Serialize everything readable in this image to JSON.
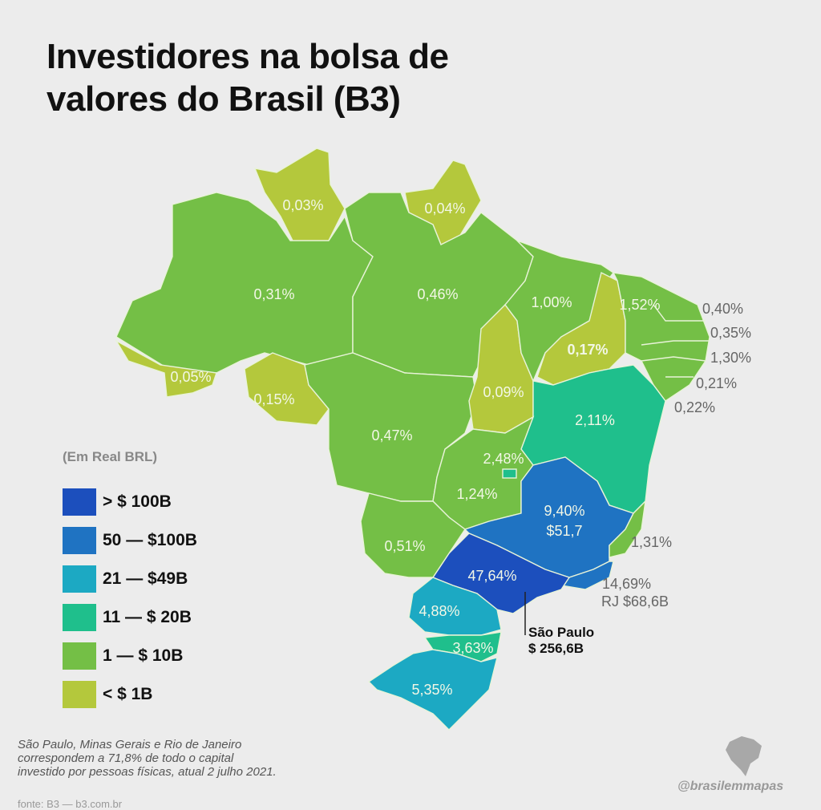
{
  "title": [
    "Investidores na bolsa de",
    "valores do Brasil (B3)"
  ],
  "colors": {
    "gt100": "#1c4fbd",
    "50to100": "#1f73c2",
    "21to49": "#1ca9c3",
    "11to20": "#1fbf8c",
    "1to10": "#74bf46",
    "lt1": "#b4c83c"
  },
  "legend": {
    "title": "(Em Real BRL)",
    "items": [
      {
        "label": "> $ 100B",
        "color": "#1c4fbd"
      },
      {
        "label": "50 — $100B",
        "color": "#1f73c2"
      },
      {
        "label": "21 — $49B",
        "color": "#1ca9c3"
      },
      {
        "label": "11 — $ 20B",
        "color": "#1fbf8c"
      },
      {
        "label": "1 — $ 10B",
        "color": "#74bf46"
      },
      {
        "label": "< $ 1B",
        "color": "#b4c83c"
      }
    ]
  },
  "labels": {
    "RR": "0,03%",
    "AP": "0,04%",
    "AM": "0,31%",
    "PA": "0,46%",
    "MA": "1,00%",
    "CE": "1,52%",
    "RN": "0,40%",
    "PB": "0,35%",
    "PE": "1,30%",
    "AL": "0,21%",
    "SE": "0,22%",
    "PI": "0,17%",
    "AC": "0,05%",
    "RO": "0,15%",
    "TO": "0,09%",
    "MT": "0,47%",
    "BA": "2,11%",
    "DF": "2,48%",
    "GO": "1,24%",
    "MG_pct": "9,40%",
    "MG_val": "$51,7",
    "ES": "1,31%",
    "MS": "0,51%",
    "SP": "47,64%",
    "RJ_pct": "14,69%",
    "RJ_val": "RJ $68,6B",
    "PR": "4,88%",
    "SC": "3,63%",
    "RS": "5,35%",
    "SP_name": "São Paulo",
    "SP_val": "$ 256,6B"
  },
  "note": [
    "São Paulo, Minas Gerais e Rio de Janeiro",
    "correspondem a 71,8% de todo o capital",
    "investido por pessoas físicas, atual 2 julho 2021."
  ],
  "source": "fonte: B3 — b3.com.br",
  "handle": "@brasilemmapas"
}
